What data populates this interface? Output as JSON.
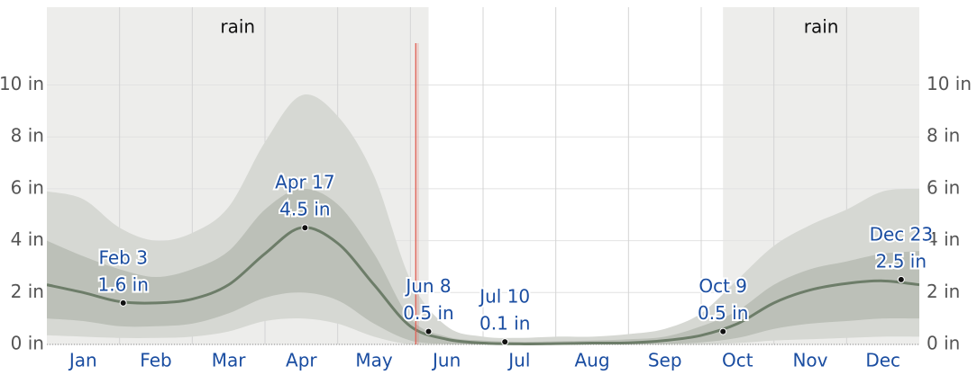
{
  "chart_data": {
    "type": "band-line",
    "categories": [
      null,
      "Jan",
      null,
      "Feb",
      null,
      "Mar",
      null,
      "Apr",
      null,
      "May",
      null,
      "Jun",
      null,
      "Jul",
      null,
      "Aug",
      null,
      "Sep",
      null,
      "Oct",
      null,
      "Nov",
      null,
      "Dec",
      null
    ],
    "bands": [
      {
        "color": "#d6d8d3",
        "low": [
          0.35,
          0.3,
          0.25,
          0.25,
          0.3,
          0.5,
          0.9,
          1.0,
          0.8,
          0.3,
          0,
          0,
          0,
          0,
          0,
          0,
          0,
          0,
          0,
          0.05,
          0.15,
          0.2,
          0.25,
          0.3,
          0.3
        ],
        "high": [
          5.9,
          5.6,
          4.5,
          4.0,
          4.3,
          5.3,
          7.8,
          9.6,
          8.8,
          6.5,
          2.5,
          0.7,
          0.3,
          0.25,
          0.3,
          0.3,
          0.4,
          0.6,
          1.2,
          2.5,
          3.8,
          4.6,
          5.2,
          5.9,
          6.0
        ]
      },
      {
        "color": "#bcc0b8",
        "low": [
          1.0,
          0.9,
          0.7,
          0.7,
          0.8,
          1.2,
          1.8,
          2.0,
          1.7,
          0.8,
          0.15,
          0.02,
          0,
          0,
          0,
          0,
          0,
          0.02,
          0.08,
          0.25,
          0.6,
          0.8,
          0.9,
          1.0,
          1.0
        ],
        "high": [
          4.0,
          3.4,
          2.9,
          2.6,
          2.9,
          3.6,
          5.2,
          6.0,
          5.4,
          3.5,
          1.0,
          0.3,
          0.15,
          0.1,
          0.12,
          0.15,
          0.2,
          0.3,
          0.7,
          1.3,
          2.3,
          2.9,
          3.2,
          3.5,
          3.6
        ]
      }
    ],
    "series": [
      {
        "color": "#6d7d69",
        "values": [
          2.3,
          2.0,
          1.65,
          1.6,
          1.75,
          2.3,
          3.5,
          4.5,
          3.9,
          2.3,
          0.7,
          0.2,
          0.05,
          0.02,
          0.03,
          0.05,
          0.06,
          0.15,
          0.35,
          0.8,
          1.6,
          2.1,
          2.35,
          2.45,
          2.3
        ]
      }
    ],
    "seasons": [
      {
        "label": "rain",
        "start": 0,
        "end": 10.5
      },
      {
        "label": "rain",
        "start": 18.6,
        "end": 24
      }
    ],
    "marker_x": 10.15,
    "marker_color": "#e0665a",
    "annotations": [
      {
        "date": "Feb 3",
        "value": 1.6,
        "value_label": "1.6 in",
        "x": 2.1
      },
      {
        "date": "Apr 17",
        "value": 4.5,
        "value_label": "4.5 in",
        "x": 7.1
      },
      {
        "date": "Jun 8",
        "value": 0.5,
        "value_label": "0.5 in",
        "x": 10.5
      },
      {
        "date": "Jul 10",
        "value": 0.1,
        "value_label": "0.1 in",
        "x": 12.6
      },
      {
        "date": "Oct 9",
        "value": 0.5,
        "value_label": "0.5 in",
        "x": 18.6
      },
      {
        "date": "Dec 23",
        "value": 2.5,
        "value_label": "2.5 in",
        "x": 23.5
      }
    ],
    "ylim": [
      0,
      13
    ],
    "yticks": [
      {
        "value": 0,
        "label": "0 in"
      },
      {
        "value": 2,
        "label": "2 in"
      },
      {
        "value": 4,
        "label": "4 in"
      },
      {
        "value": 6,
        "label": "6 in"
      },
      {
        "value": 8,
        "label": "8 in"
      },
      {
        "value": 10,
        "label": "10 in"
      }
    ],
    "y2lim": [
      0,
      13
    ],
    "y2ticks": [
      {
        "value": 0,
        "label": "0 in"
      },
      {
        "value": 2,
        "label": "2 in"
      },
      {
        "value": 4,
        "label": "4 in"
      },
      {
        "value": 6,
        "label": "6 in"
      },
      {
        "value": 8,
        "label": "8 in"
      },
      {
        "value": 10,
        "label": "10 in"
      }
    ],
    "grid": true
  }
}
